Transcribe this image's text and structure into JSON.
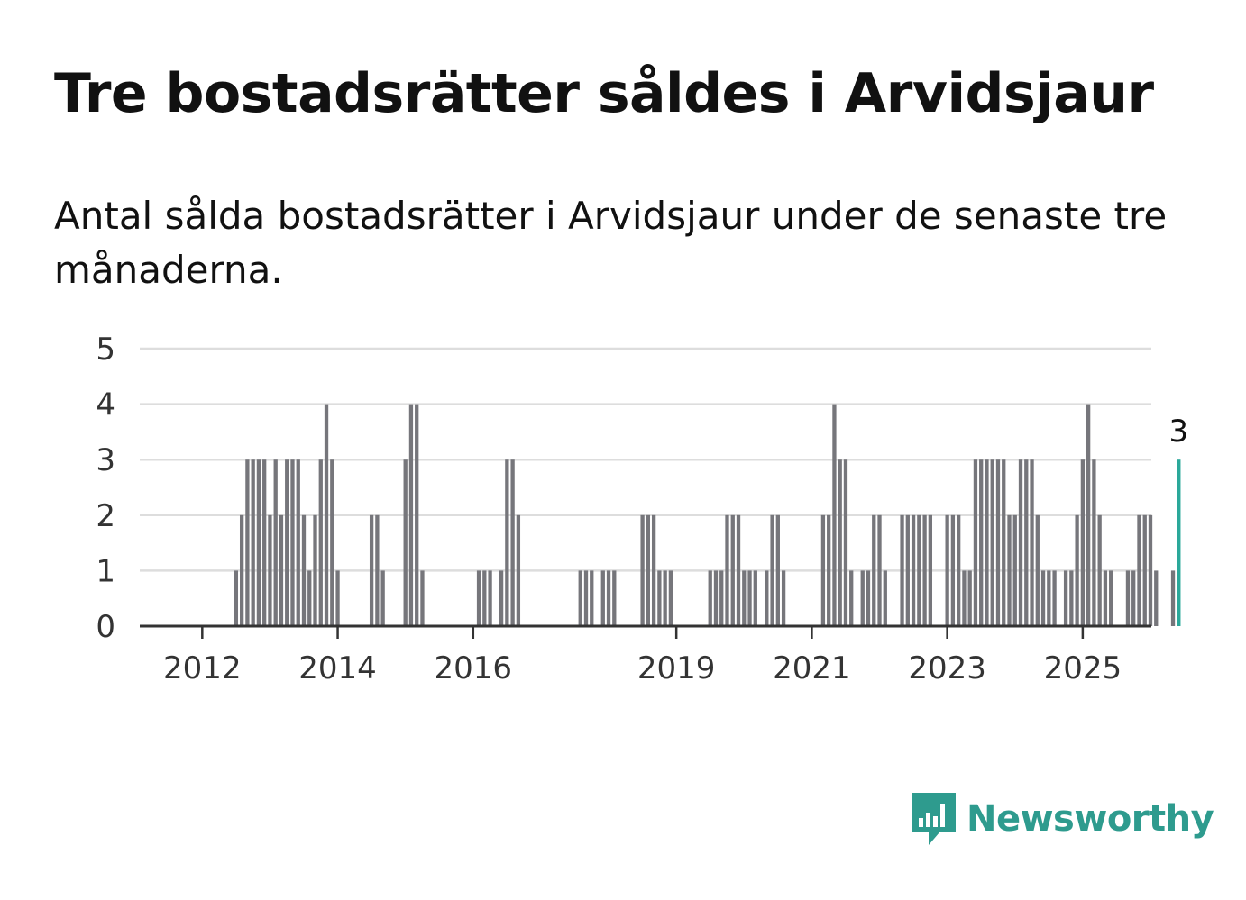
{
  "title": "Tre bostadsrätter såldes i Arvidsjaur",
  "subtitle": "Antal sålda bostadsrätter i Arvidsjaur under de senaste tre månaderna.",
  "brand": {
    "name": "Newsworthy",
    "color": "#2e9b8e",
    "icon": "newsworthy-logo-icon"
  },
  "colors": {
    "bar": "#76767b",
    "highlight": "#2aa89a",
    "grid": "#dddddd",
    "axis": "#333333"
  },
  "chart_data": {
    "type": "bar",
    "x_unit": "month",
    "start_month": "2011-06",
    "values": [
      0,
      0,
      0,
      0,
      0,
      0,
      0,
      0,
      0,
      0,
      0,
      0,
      0,
      1,
      2,
      3,
      3,
      3,
      3,
      2,
      3,
      2,
      3,
      3,
      3,
      2,
      1,
      2,
      3,
      4,
      3,
      1,
      0,
      0,
      0,
      0,
      0,
      2,
      2,
      1,
      0,
      0,
      0,
      3,
      4,
      4,
      1,
      0,
      0,
      0,
      0,
      0,
      0,
      0,
      0,
      0,
      1,
      1,
      1,
      0,
      1,
      3,
      3,
      2,
      0,
      0,
      0,
      0,
      0,
      0,
      0,
      0,
      0,
      0,
      1,
      1,
      1,
      0,
      1,
      1,
      1,
      0,
      0,
      0,
      0,
      2,
      2,
      2,
      1,
      1,
      1,
      0,
      0,
      0,
      0,
      0,
      0,
      1,
      1,
      1,
      2,
      2,
      2,
      1,
      1,
      1,
      0,
      1,
      2,
      2,
      1,
      0,
      0,
      0,
      0,
      0,
      0,
      2,
      2,
      4,
      3,
      3,
      1,
      0,
      1,
      1,
      2,
      2,
      1,
      0,
      0,
      2,
      2,
      2,
      2,
      2,
      2,
      0,
      0,
      2,
      2,
      2,
      1,
      1,
      3,
      3,
      3,
      3,
      3,
      3,
      2,
      2,
      3,
      3,
      3,
      2,
      1,
      1,
      1,
      0,
      1,
      1,
      2,
      3,
      4,
      3,
      2,
      1,
      1,
      0,
      0,
      1,
      1,
      2,
      2,
      2,
      1,
      0,
      0,
      1,
      3
    ],
    "highlight_last": true,
    "annotation": "3",
    "xticks": [
      "2012",
      "2014",
      "2016",
      "2019",
      "2021",
      "2023",
      "2025"
    ],
    "yticks": [
      "0",
      "1",
      "2",
      "3",
      "4",
      "5"
    ],
    "ylim": [
      0,
      5
    ],
    "grid": true
  }
}
